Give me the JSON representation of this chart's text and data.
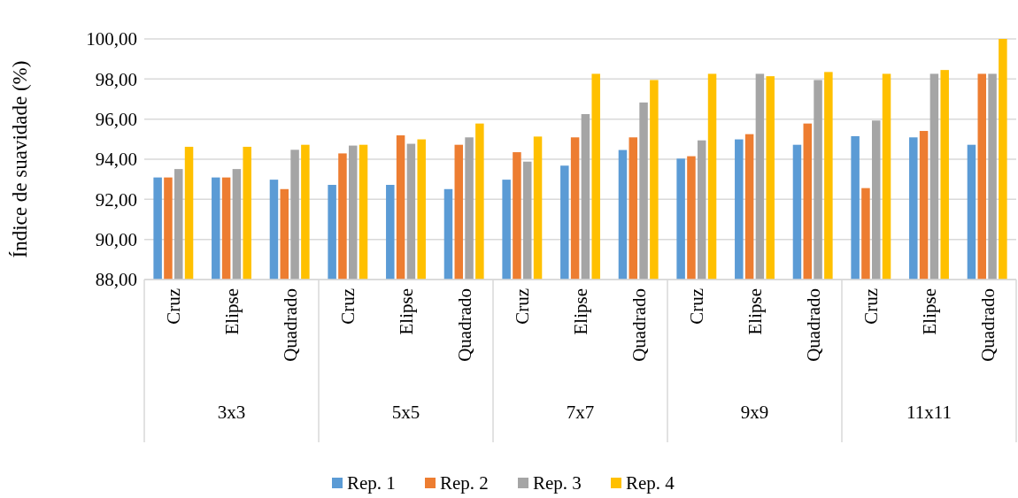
{
  "chart_data": {
    "type": "bar",
    "ylabel": "Índice de suavidade (%)",
    "categories": [
      "Cruz",
      "Elipse",
      "Quadrado",
      "Cruz",
      "Elipse",
      "Quadrado",
      "Cruz",
      "Elipse",
      "Quadrado",
      "Cruz",
      "Elipse",
      "Quadrado",
      "Cruz",
      "Elipse",
      "Quadrado"
    ],
    "annotations": [
      "3x3",
      "5x5",
      "7x7",
      "9x9",
      "11x11"
    ],
    "series": [
      {
        "name": "Rep. 1",
        "color": "#5b9bd5",
        "values": [
          93.09,
          93.09,
          92.98,
          92.72,
          92.72,
          92.51,
          92.98,
          93.68,
          94.46,
          94.03,
          94.99,
          94.72,
          95.15,
          95.09,
          94.72
        ]
      },
      {
        "name": "Rep. 2",
        "color": "#ed7d31",
        "values": [
          93.09,
          93.09,
          92.51,
          94.29,
          95.19,
          94.72,
          94.35,
          95.09,
          95.09,
          94.15,
          95.25,
          95.78,
          92.56,
          95.41,
          98.26
        ]
      },
      {
        "name": "Rep. 3",
        "color": "#a5a5a5",
        "values": [
          93.51,
          93.51,
          94.47,
          94.68,
          94.77,
          95.09,
          93.88,
          96.25,
          96.83,
          94.94,
          98.26,
          97.95,
          95.93,
          98.26,
          98.26
        ]
      },
      {
        "name": "Rep. 4",
        "color": "#ffc000",
        "values": [
          94.62,
          94.62,
          94.72,
          94.72,
          94.99,
          95.78,
          95.13,
          98.26,
          97.95,
          98.26,
          98.14,
          98.35,
          98.26,
          98.45,
          100
        ]
      }
    ],
    "ylim": [
      88,
      100
    ],
    "yticks": [
      {
        "value": 88,
        "label": "88,00"
      },
      {
        "value": 90,
        "label": "90,00"
      },
      {
        "value": 92,
        "label": "92,00"
      },
      {
        "value": 94,
        "label": "94,00"
      },
      {
        "value": 96,
        "label": "96,00"
      },
      {
        "value": 98,
        "label": "98,00"
      },
      {
        "value": 100,
        "label": "100,00"
      }
    ],
    "grid": "y",
    "legend": "bottom"
  }
}
